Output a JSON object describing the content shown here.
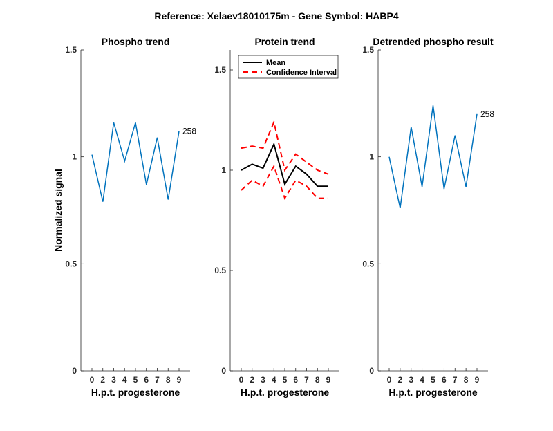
{
  "figure": {
    "title": "Reference:  Xelaev18010175m - Gene Symbol:  HABP4"
  },
  "chart_data": [
    {
      "type": "line",
      "title": "Phospho trend",
      "xlabel": "H.p.t. progesterone",
      "ylabel": "Normalized signal",
      "categories": [
        "0",
        "2",
        "3",
        "4",
        "5",
        "6",
        "7",
        "8",
        "9"
      ],
      "ylim": [
        0,
        1.5
      ],
      "yticks": [
        0,
        0.5,
        1,
        1.5
      ],
      "ytick_labels": [
        "0",
        "0.5",
        "1",
        "1.5"
      ],
      "series": [
        {
          "name": "Phospho",
          "color": "#0072BD",
          "style": "solid",
          "values": [
            1.01,
            0.79,
            1.16,
            0.98,
            1.16,
            0.87,
            1.09,
            0.8,
            1.12
          ]
        }
      ],
      "annotations": [
        {
          "text": "258",
          "series": 0,
          "index": 8
        }
      ]
    },
    {
      "type": "line",
      "title": "Protein trend",
      "xlabel": "H.p.t. progesterone",
      "ylabel": "",
      "categories": [
        "0",
        "2",
        "3",
        "4",
        "5",
        "6",
        "7",
        "8",
        "9"
      ],
      "ylim": [
        0,
        1.6
      ],
      "yticks": [
        0,
        0.5,
        1,
        1.5
      ],
      "ytick_labels": [
        "0",
        "0.5",
        "1",
        "1.5"
      ],
      "legend": {
        "placement": "top-left",
        "entries": [
          "Mean",
          "Confidence Interval"
        ]
      },
      "series": [
        {
          "name": "Mean",
          "color": "#000000",
          "style": "solid",
          "values": [
            1.0,
            1.03,
            1.01,
            1.13,
            0.93,
            1.02,
            0.98,
            0.92,
            0.92
          ]
        },
        {
          "name": "Confidence Interval",
          "color": "#FF0000",
          "style": "dashed",
          "values": [
            1.11,
            1.12,
            1.11,
            1.24,
            1.0,
            1.08,
            1.04,
            1.0,
            0.98
          ]
        },
        {
          "name": "Confidence Interval (lower)",
          "color": "#FF0000",
          "style": "dashed",
          "values": [
            0.9,
            0.95,
            0.92,
            1.02,
            0.86,
            0.95,
            0.92,
            0.86,
            0.86
          ]
        }
      ]
    },
    {
      "type": "line",
      "title": "Detrended phospho result",
      "xlabel": "H.p.t. progesterone",
      "ylabel": "",
      "categories": [
        "0",
        "2",
        "3",
        "4",
        "5",
        "6",
        "7",
        "8",
        "9"
      ],
      "ylim": [
        0,
        1.5
      ],
      "yticks": [
        0,
        0.5,
        1,
        1.5
      ],
      "ytick_labels": [
        "0",
        "0.5",
        "1",
        "1.5"
      ],
      "series": [
        {
          "name": "Detrended",
          "color": "#0072BD",
          "style": "solid",
          "values": [
            1.0,
            0.76,
            1.14,
            0.86,
            1.24,
            0.85,
            1.1,
            0.86,
            1.2
          ]
        }
      ],
      "annotations": [
        {
          "text": "258",
          "series": 0,
          "index": 8
        }
      ]
    }
  ]
}
